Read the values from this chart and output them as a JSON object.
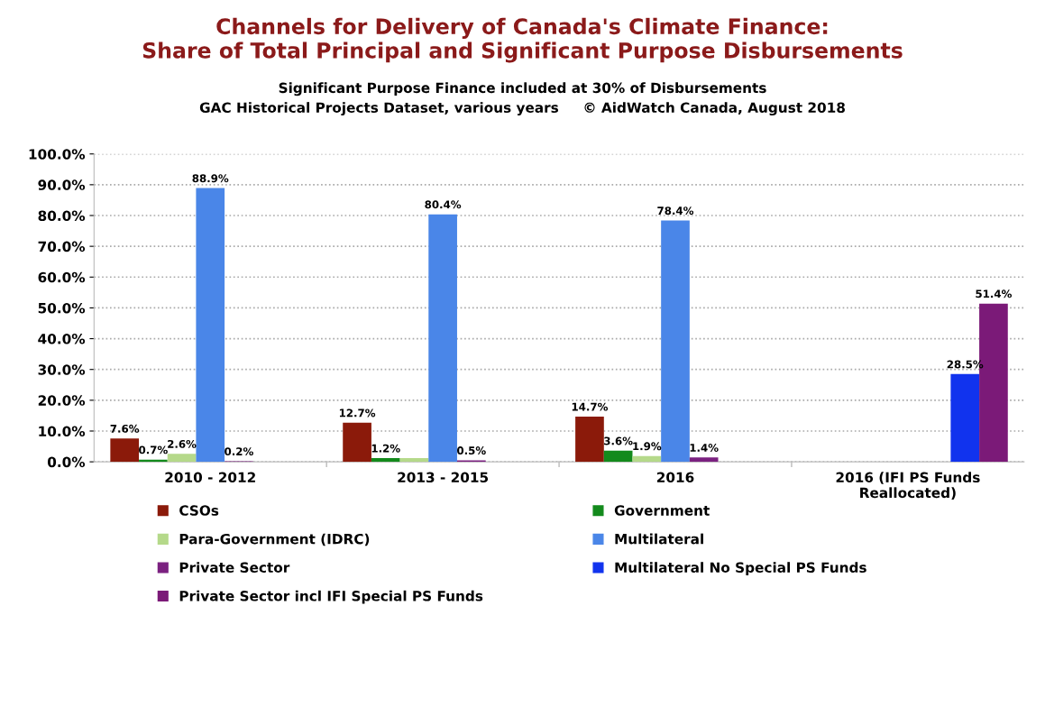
{
  "chart_data": {
    "type": "bar",
    "title": "Channels for Delivery of Canada's Climate Finance:\nShare of Total Principal and Significant Purpose Disbursements",
    "subtitle": "Significant Purpose Finance included at 30% of Disbursements\nGAC Historical Projects Dataset, various years     © AidWatch Canada, August 2018",
    "categories": [
      "2010 - 2012",
      "2013 - 2015",
      "2016",
      "2016 (IFI PS Funds\nReallocated)"
    ],
    "series": [
      {
        "name": "CSOs",
        "color": "#8b1a0a",
        "values": [
          7.6,
          12.7,
          14.7,
          null
        ],
        "value_labels": [
          "7.6%",
          "12.7%",
          "14.7%",
          null
        ]
      },
      {
        "name": "Government",
        "color": "#138a1c",
        "values": [
          0.7,
          1.2,
          3.6,
          null
        ],
        "value_labels": [
          "0.7%",
          "1.2%",
          "3.6%",
          null
        ]
      },
      {
        "name": "Para-Government (IDRC)",
        "color": "#b5d98a",
        "values": [
          2.6,
          1.2,
          1.9,
          null
        ],
        "value_labels": [
          "2.6%",
          null,
          "1.9%",
          null
        ]
      },
      {
        "name": "Multilateral",
        "color": "#4a86e8",
        "values": [
          88.9,
          80.4,
          78.4,
          null
        ],
        "value_labels": [
          "88.9%",
          "80.4%",
          "78.4%",
          null
        ]
      },
      {
        "name": "Private Sector",
        "color": "#7b2180",
        "values": [
          0.2,
          0.5,
          1.4,
          null
        ],
        "value_labels": [
          "0.2%",
          "0.5%",
          "1.4%",
          null
        ]
      },
      {
        "name": "Multilateral No Special PS Funds",
        "color": "#1133ee",
        "values": [
          null,
          null,
          null,
          28.5
        ],
        "value_labels": [
          null,
          null,
          null,
          "28.5%"
        ]
      },
      {
        "name": "Private Sector incl IFI Special PS Funds",
        "color": "#7b1a78",
        "values": [
          null,
          null,
          null,
          51.4
        ],
        "value_labels": [
          null,
          null,
          null,
          "51.4%"
        ]
      }
    ],
    "ylim": [
      0,
      100
    ],
    "yticks": [
      {
        "value": 0,
        "label": "0.0%"
      },
      {
        "value": 10,
        "label": "10.0%"
      },
      {
        "value": 20,
        "label": "20.0%"
      },
      {
        "value": 30,
        "label": "30.0%"
      },
      {
        "value": 40,
        "label": "40.0%"
      },
      {
        "value": 50,
        "label": "50.0%"
      },
      {
        "value": 60,
        "label": "60.0%"
      },
      {
        "value": 70,
        "label": "70.0%"
      },
      {
        "value": 80,
        "label": "80.0%"
      },
      {
        "value": 90,
        "label": "90.0%"
      },
      {
        "value": 100,
        "label": "100.0%"
      }
    ],
    "grid": "y",
    "legend": "bottom"
  }
}
